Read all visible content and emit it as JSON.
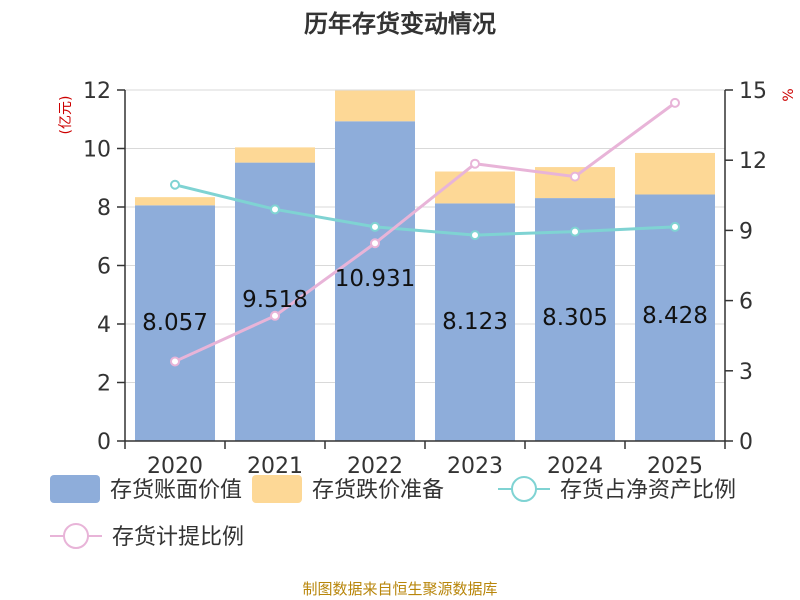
{
  "chart_data": {
    "type": "bar",
    "title": "历年存货变动情况",
    "categories": [
      "2020",
      "2021",
      "2022",
      "2023",
      "2024",
      "2025"
    ],
    "left_axis": {
      "unit": "(亿元)",
      "ylim": [
        0,
        12
      ],
      "ticks": [
        0,
        2,
        4,
        6,
        8,
        10,
        12
      ]
    },
    "right_axis": {
      "unit": "%",
      "ylim": [
        0,
        15
      ],
      "ticks": [
        0,
        3,
        6,
        9,
        12,
        15
      ]
    },
    "series": [
      {
        "name": "存货账面价值",
        "kind": "bar",
        "axis": "left",
        "color": "#8eadda",
        "values": [
          8.057,
          9.518,
          10.931,
          8.123,
          8.305,
          8.428
        ],
        "labels": [
          "8.057",
          "9.518",
          "10.931",
          "8.123",
          "8.305",
          "8.428"
        ]
      },
      {
        "name": "存货跌价准备",
        "kind": "bar-stack",
        "axis": "left",
        "color": "#fdd896",
        "values": [
          0.28,
          0.52,
          1.05,
          1.09,
          1.06,
          1.42
        ]
      },
      {
        "name": "存货占净资产比例",
        "kind": "line",
        "axis": "right",
        "color": "#7fd3d3",
        "values": [
          10.95,
          9.9,
          9.15,
          8.8,
          8.95,
          9.15
        ]
      },
      {
        "name": "存货计提比例",
        "kind": "line",
        "axis": "right",
        "color": "#e8b4d8",
        "values": [
          3.4,
          5.35,
          8.45,
          11.85,
          11.3,
          14.45
        ]
      }
    ],
    "grid": true,
    "legend_position": "bottom"
  },
  "source_note": "制图数据来自恒生聚源数据库"
}
